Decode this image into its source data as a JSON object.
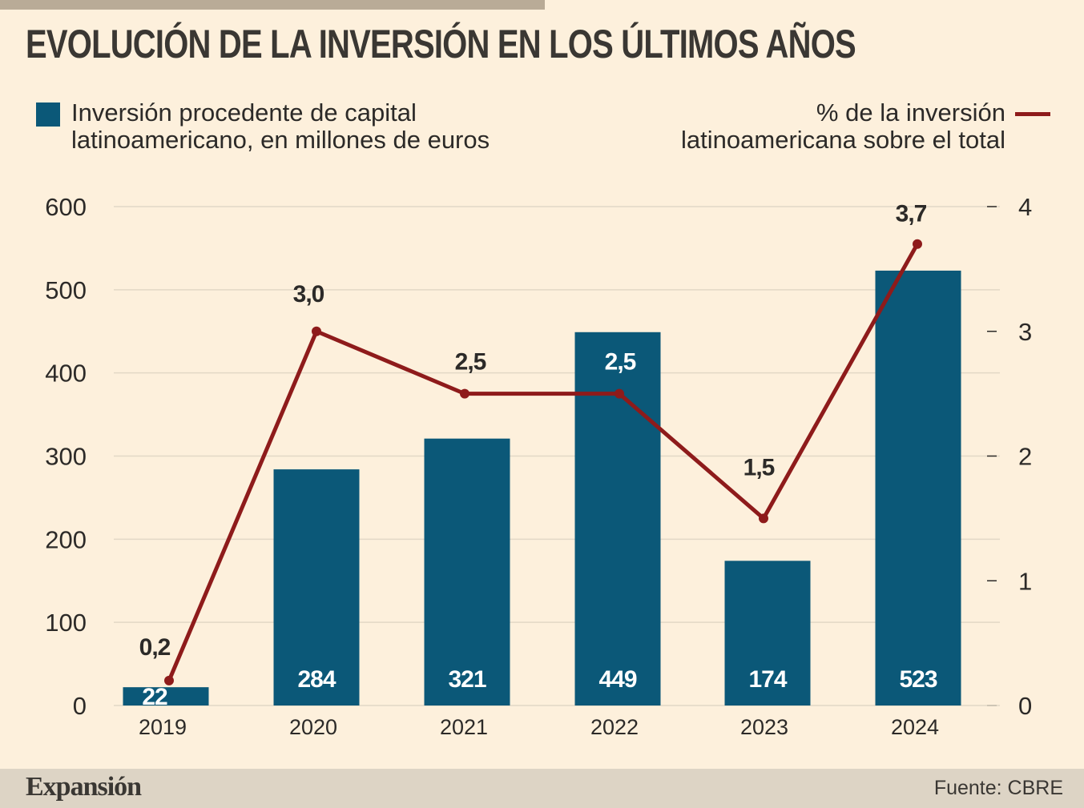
{
  "title": "EVOLUCIÓN DE LA INVERSIÓN EN LOS ÚLTIMOS AÑOS",
  "legend": {
    "bars": "Inversión procedente de capital latinoamericano, en millones de euros",
    "bars_line1": "Inversión procedente de capital",
    "bars_line2": "latinoamericano, en millones de euros",
    "line_line1": "% de la inversión",
    "line_line2": "latinoamericana sobre el total"
  },
  "footer": {
    "logo": "Expansión",
    "source": "Fuente: CBRE"
  },
  "colors": {
    "bar": "#0b5878",
    "line": "#8e1b1b",
    "background": "#fdf0dc"
  },
  "chart_data": {
    "type": "bar",
    "categories": [
      "2019",
      "2020",
      "2021",
      "2022",
      "2023",
      "2024"
    ],
    "series": [
      {
        "name": "Inversión procedente de capital latinoamericano, en millones de euros",
        "type": "bar",
        "axis": "left",
        "values": [
          22,
          284,
          321,
          449,
          174,
          523
        ],
        "labels": [
          "22",
          "284",
          "321",
          "449",
          "174",
          "523"
        ]
      },
      {
        "name": "% de la inversión latinoamericana sobre el total",
        "type": "line",
        "axis": "right",
        "values": [
          0.2,
          3.0,
          2.5,
          2.5,
          1.5,
          3.7
        ],
        "labels": [
          "0,2",
          "3,0",
          "2,5",
          "2,5",
          "1,5",
          "3,7"
        ]
      }
    ],
    "y_left": {
      "ylim": [
        0,
        600
      ],
      "ticks": [
        "0",
        "100",
        "200",
        "300",
        "400",
        "500",
        "600"
      ]
    },
    "y_right": {
      "ylim": [
        0,
        4
      ],
      "ticks": [
        "0",
        "1",
        "2",
        "3",
        "4"
      ]
    },
    "grid": true,
    "legend_position": "top"
  }
}
